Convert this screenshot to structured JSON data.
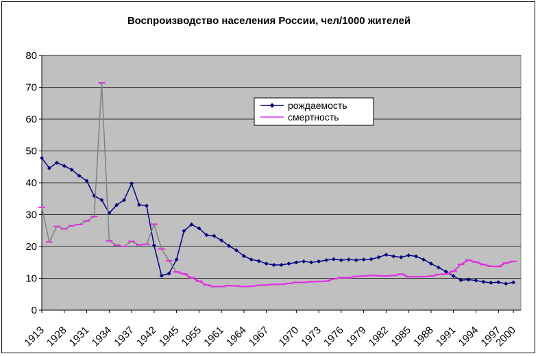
{
  "chart_data": {
    "type": "line",
    "title": "Воспроизводство населения России, чел/1000 жителей",
    "xlabel": "",
    "ylabel": "",
    "ylim": [
      0,
      80
    ],
    "y_ticks": [
      0,
      10,
      20,
      30,
      40,
      50,
      60,
      70,
      80
    ],
    "x_ticks": [
      "1913",
      "1928",
      "1931",
      "1934",
      "1937",
      "1942",
      "1945",
      "1955",
      "1961",
      "1964",
      "1967",
      "1970",
      "1973",
      "1976",
      "1979",
      "1982",
      "1985",
      "1988",
      "1991",
      "1994",
      "1997",
      "2000"
    ],
    "grid": "horizontal",
    "legend_position": "upper-center",
    "background": "#C0C0C0",
    "series": [
      {
        "name": "рождаемость",
        "color": "#000080",
        "marker": "diamond",
        "values": [
          47.8,
          44.6,
          46.3,
          45.3,
          44.1,
          42.2,
          40.6,
          35.9,
          34.6,
          30.5,
          33.0,
          34.6,
          39.8,
          33.1,
          32.8,
          20.3,
          10.8,
          11.5,
          15.9,
          24.9,
          26.9,
          25.7,
          23.6,
          23.3,
          21.9,
          20.2,
          18.8,
          17.0,
          15.9,
          15.4,
          14.6,
          14.2,
          14.2,
          14.6,
          15.0,
          15.3,
          15.0,
          15.3,
          15.7,
          16.0,
          15.7,
          15.9,
          15.7,
          15.9,
          16.0,
          16.6,
          17.4,
          16.9,
          16.6,
          17.2,
          16.9,
          15.9,
          14.6,
          13.4,
          12.1,
          10.7,
          9.4,
          9.6,
          9.3,
          8.9,
          8.6,
          8.8,
          8.3,
          8.7
        ]
      },
      {
        "name": "смертность",
        "color": "#E030E0",
        "marker": "dash",
        "values": [
          32.3,
          21.4,
          26.3,
          25.5,
          26.5,
          26.9,
          28.0,
          29.4,
          71.4,
          21.8,
          20.4,
          20.0,
          21.6,
          20.5,
          20.7,
          27.0,
          19.2,
          15.5,
          12.0,
          11.4,
          10.2,
          9.1,
          7.9,
          7.4,
          7.4,
          7.7,
          7.6,
          7.4,
          7.5,
          7.8,
          7.9,
          8.1,
          8.1,
          8.4,
          8.7,
          8.7,
          8.9,
          9.0,
          9.1,
          9.8,
          10.2,
          10.2,
          10.6,
          10.7,
          10.9,
          10.8,
          10.7,
          10.9,
          11.3,
          10.5,
          10.5,
          10.5,
          10.7,
          11.2,
          11.4,
          12.2,
          14.4,
          15.7,
          15.1,
          14.3,
          13.8,
          13.7,
          14.8,
          15.3
        ]
      }
    ]
  }
}
